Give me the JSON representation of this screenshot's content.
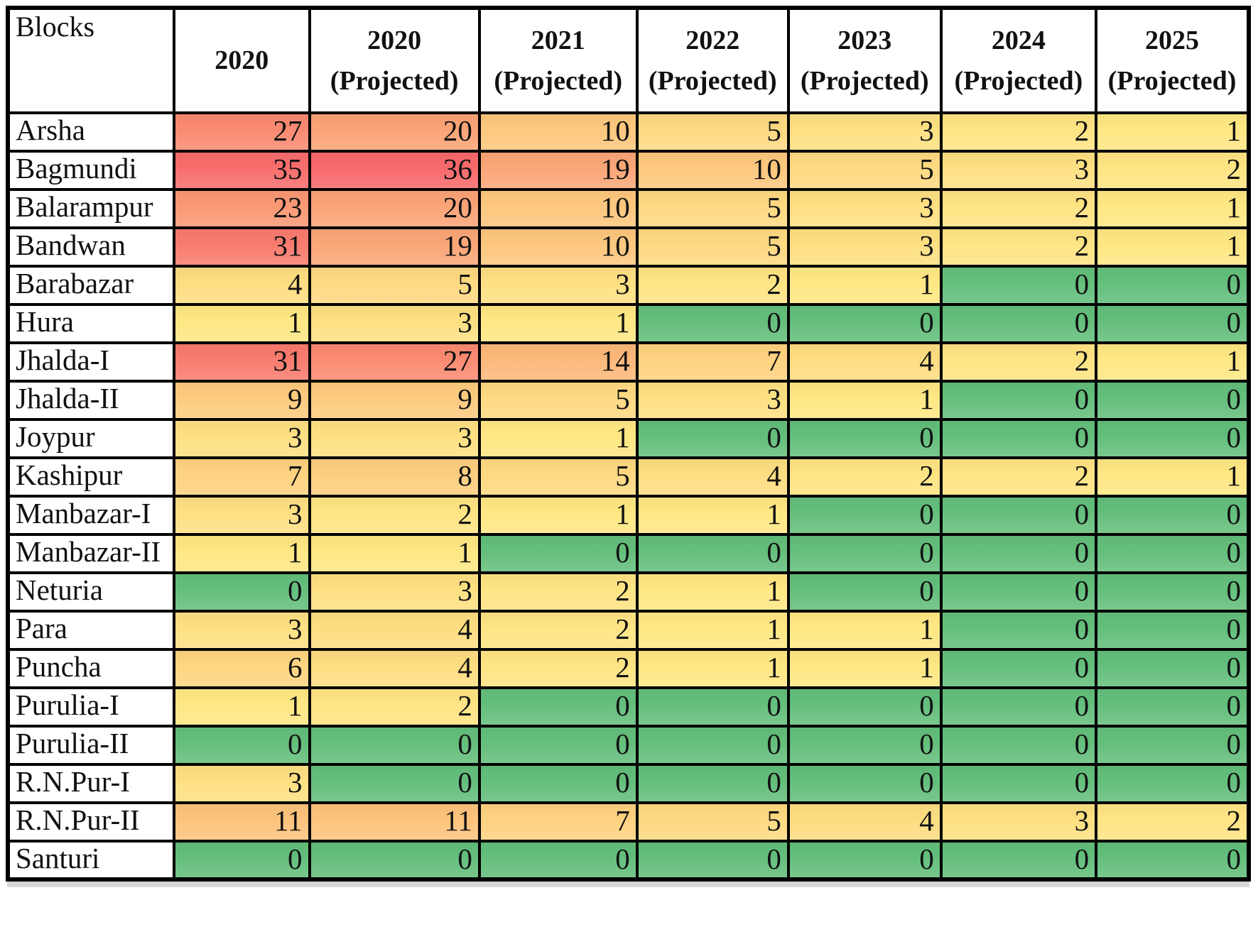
{
  "figure": {
    "bottom_shadow_color": "#d6d6d6",
    "background": "#ffffff"
  },
  "chart_data": {
    "type": "heatmap",
    "row_header": "Blocks",
    "columns": [
      {
        "year": "2020",
        "sub": ""
      },
      {
        "year": "2020",
        "sub": "(Projected)"
      },
      {
        "year": "2021",
        "sub": "(Projected)"
      },
      {
        "year": "2022",
        "sub": "(Projected)"
      },
      {
        "year": "2023",
        "sub": "(Projected)"
      },
      {
        "year": "2024",
        "sub": "(Projected)"
      },
      {
        "year": "2025",
        "sub": "(Projected)"
      }
    ],
    "rows": [
      "Arsha",
      "Bagmundi",
      "Balarampur",
      "Bandwan",
      "Barabazar",
      "Hura",
      "Jhalda-I",
      "Jhalda-II",
      "Joypur",
      "Kashipur",
      "Manbazar-I",
      "Manbazar-II",
      "Neturia",
      "Para",
      "Puncha",
      "Purulia-I",
      "Purulia-II",
      "R.N.Pur-I",
      "R.N.Pur-II",
      "Santuri"
    ],
    "values": [
      [
        27,
        20,
        10,
        5,
        3,
        2,
        1
      ],
      [
        35,
        36,
        19,
        10,
        5,
        3,
        2
      ],
      [
        23,
        20,
        10,
        5,
        3,
        2,
        1
      ],
      [
        31,
        19,
        10,
        5,
        3,
        2,
        1
      ],
      [
        4,
        5,
        3,
        2,
        1,
        0,
        0
      ],
      [
        1,
        3,
        1,
        0,
        0,
        0,
        0
      ],
      [
        31,
        27,
        14,
        7,
        4,
        2,
        1
      ],
      [
        9,
        9,
        5,
        3,
        1,
        0,
        0
      ],
      [
        3,
        3,
        1,
        0,
        0,
        0,
        0
      ],
      [
        7,
        8,
        5,
        4,
        2,
        2,
        1
      ],
      [
        3,
        2,
        1,
        1,
        0,
        0,
        0
      ],
      [
        1,
        1,
        0,
        0,
        0,
        0,
        0
      ],
      [
        0,
        3,
        2,
        1,
        0,
        0,
        0
      ],
      [
        3,
        4,
        2,
        1,
        1,
        0,
        0
      ],
      [
        6,
        4,
        2,
        1,
        1,
        0,
        0
      ],
      [
        1,
        2,
        0,
        0,
        0,
        0,
        0
      ],
      [
        0,
        0,
        0,
        0,
        0,
        0,
        0
      ],
      [
        3,
        0,
        0,
        0,
        0,
        0,
        0
      ],
      [
        11,
        11,
        7,
        5,
        4,
        3,
        2
      ],
      [
        0,
        0,
        0,
        0,
        0,
        0,
        0
      ]
    ],
    "color_scale": {
      "zero_color": "#63BE7B",
      "low_color": "#FFEB84",
      "high_color": "#F8696B",
      "low_value": 0,
      "high_value": 36
    },
    "layout": {
      "grid_color": "#000000",
      "header_bg": "#ffffff",
      "text_color": "#111111",
      "column_width_percents": [
        13.4,
        10.9,
        13.7,
        12.7,
        12.2,
        12.3,
        12.5,
        12.3
      ]
    }
  }
}
